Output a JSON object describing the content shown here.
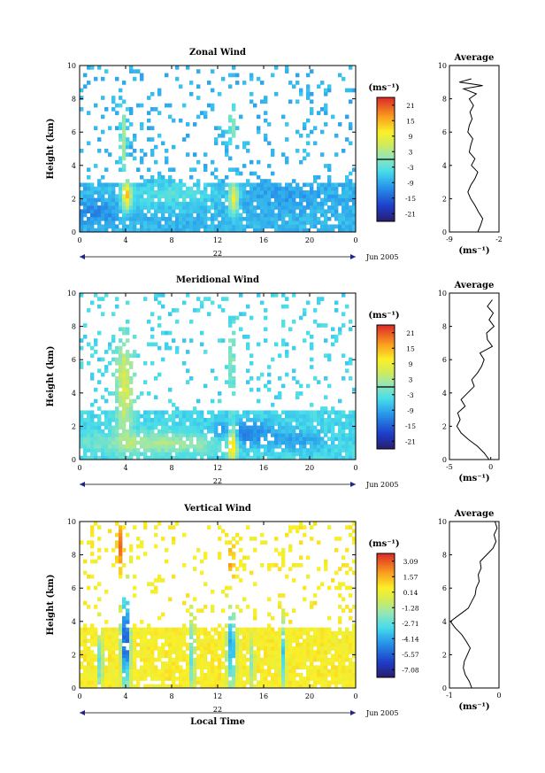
{
  "figure": {
    "xlabel": "Local Time",
    "date_label": "Jun 2005",
    "day_label": "22"
  },
  "chart_data": [
    {
      "type": "heatmap",
      "title": "Zonal Wind",
      "ylabel": "Height (km)",
      "unit_label": "(ms⁻¹)",
      "x_ticks": [
        "0",
        "4",
        "8",
        "12",
        "16",
        "20",
        "0"
      ],
      "y_ticks": [
        "0",
        "2",
        "4",
        "6",
        "8",
        "10"
      ],
      "xlim": [
        0,
        24
      ],
      "ylim": [
        0,
        10
      ],
      "colorbar": {
        "ticks": [
          "21",
          "15",
          "9",
          "3",
          "-3",
          "-9",
          "-15",
          "-21"
        ],
        "range": [
          -24,
          24
        ],
        "zero_line": 0
      },
      "profile": {
        "title": "Average",
        "xlabel": "(ms⁻¹)",
        "x_ticks": [
          "-9",
          "-2"
        ],
        "xlim": [
          -9,
          -2
        ],
        "y_ticks": [
          "0",
          "2",
          "4",
          "6",
          "8",
          "10"
        ],
        "height_km": [
          0.0,
          0.4,
          0.8,
          1.2,
          1.6,
          2.0,
          2.4,
          2.8,
          3.2,
          3.6,
          4.0,
          4.4,
          4.8,
          5.2,
          5.6,
          6.0,
          6.4,
          6.8,
          7.2,
          7.6,
          8.0,
          8.3,
          8.6,
          8.8,
          9.0,
          9.2
        ],
        "value": [
          -5.0,
          -4.6,
          -4.3,
          -4.9,
          -5.4,
          -6.0,
          -6.4,
          -6.0,
          -5.4,
          -5.0,
          -5.9,
          -5.4,
          -6.2,
          -6.0,
          -5.7,
          -6.4,
          -6.2,
          -5.8,
          -6.1,
          -5.6,
          -6.2,
          -5.2,
          -7.0,
          -4.3,
          -7.6,
          -5.9
        ]
      },
      "field": {
        "base": -8,
        "patches": [
          [
            4.1,
            2.2,
            0.4,
            0.9,
            14
          ],
          [
            3.8,
            5.5,
            0.3,
            2.0,
            4
          ],
          [
            13.4,
            2.0,
            0.4,
            1.0,
            10
          ],
          [
            13.3,
            6.5,
            0.3,
            1.5,
            2
          ],
          [
            8,
            2.3,
            4,
            0.8,
            -3
          ],
          [
            1.5,
            1.2,
            2,
            0.7,
            -12
          ],
          [
            18,
            2.2,
            4,
            0.8,
            -10
          ]
        ]
      }
    },
    {
      "type": "heatmap",
      "title": "Meridional Wind",
      "ylabel": "Height (km)",
      "unit_label": "(ms⁻¹)",
      "x_ticks": [
        "0",
        "4",
        "8",
        "12",
        "16",
        "20",
        "0"
      ],
      "y_ticks": [
        "0",
        "2",
        "4",
        "6",
        "8",
        "10"
      ],
      "xlim": [
        0,
        24
      ],
      "ylim": [
        0,
        10
      ],
      "colorbar": {
        "ticks": [
          "21",
          "15",
          "9",
          "3",
          "-3",
          "-9",
          "-15",
          "-21"
        ],
        "range": [
          -24,
          24
        ],
        "zero_line": 0
      },
      "profile": {
        "title": "Average",
        "xlabel": "(ms⁻¹)",
        "x_ticks": [
          "-5",
          "0"
        ],
        "xlim": [
          -5,
          1
        ],
        "y_ticks": [
          "0",
          "2",
          "4",
          "6",
          "8",
          "10"
        ],
        "height_km": [
          0.0,
          0.4,
          0.8,
          1.2,
          1.6,
          2.0,
          2.4,
          2.8,
          3.2,
          3.6,
          4.0,
          4.4,
          4.8,
          5.2,
          5.6,
          6.0,
          6.4,
          6.8,
          7.2,
          7.6,
          8.0,
          8.4,
          8.8,
          9.2,
          9.6
        ],
        "value": [
          -0.2,
          -0.8,
          -1.6,
          -2.7,
          -3.6,
          -4.1,
          -3.7,
          -4.0,
          -3.1,
          -3.6,
          -2.8,
          -2.0,
          -2.3,
          -1.6,
          -1.1,
          -0.8,
          -1.3,
          0.2,
          -0.4,
          -0.5,
          0.4,
          -0.2,
          0.3,
          -0.4,
          0.2
        ]
      },
      "field": {
        "base": -5,
        "patches": [
          [
            3.9,
            4.5,
            0.8,
            3.0,
            8
          ],
          [
            13.3,
            1.0,
            0.4,
            1.2,
            16
          ],
          [
            13.2,
            6.0,
            0.3,
            2.0,
            2
          ],
          [
            14.0,
            1.6,
            2.5,
            0.8,
            -14
          ],
          [
            18.5,
            1.2,
            3,
            0.6,
            -10
          ],
          [
            7,
            1.0,
            6,
            0.6,
            4
          ]
        ]
      }
    },
    {
      "type": "heatmap",
      "title": "Vertical Wind",
      "ylabel": "Height (km)",
      "unit_label": "(ms⁻¹)",
      "x_ticks": [
        "0",
        "4",
        "8",
        "12",
        "16",
        "20",
        "0"
      ],
      "y_ticks": [
        "0",
        "2",
        "4",
        "6",
        "8",
        "10"
      ],
      "xlim": [
        0,
        24
      ],
      "ylim": [
        0,
        10
      ],
      "colorbar": {
        "ticks": [
          "3.09",
          "1.57",
          "0.14",
          "-1.28",
          "-2.71",
          "-4.14",
          "-5.57",
          "-7.08"
        ],
        "range": [
          -7.8,
          3.8
        ]
      },
      "profile": {
        "title": "Average",
        "xlabel": "(ms⁻¹)",
        "x_ticks": [
          "-1",
          "0"
        ],
        "xlim": [
          -1,
          0
        ],
        "y_ticks": [
          "0",
          "2",
          "4",
          "6",
          "8",
          "10"
        ],
        "height_km": [
          0.0,
          0.4,
          0.8,
          1.2,
          1.6,
          2.0,
          2.4,
          2.8,
          3.2,
          3.6,
          4.0,
          4.4,
          4.8,
          5.2,
          5.6,
          6.0,
          6.4,
          6.8,
          7.2,
          7.6,
          8.0,
          8.4,
          8.8,
          9.2,
          9.6,
          10.0
        ],
        "value": [
          -0.55,
          -0.6,
          -0.68,
          -0.72,
          -0.7,
          -0.64,
          -0.58,
          -0.66,
          -0.75,
          -0.88,
          -0.98,
          -0.8,
          -0.62,
          -0.55,
          -0.48,
          -0.46,
          -0.4,
          -0.42,
          -0.36,
          -0.38,
          -0.25,
          -0.12,
          -0.06,
          -0.1,
          -0.04,
          -0.08
        ]
      },
      "field": {
        "base": 0.5,
        "patches": [
          [
            4.0,
            3.0,
            0.4,
            3.0,
            -7
          ],
          [
            3.5,
            8.5,
            0.3,
            1.5,
            3
          ],
          [
            1.8,
            1.5,
            0.2,
            2.0,
            -4
          ],
          [
            9.8,
            2.0,
            0.2,
            2.5,
            -4
          ],
          [
            13.2,
            2.5,
            0.4,
            2.5,
            -5
          ],
          [
            13.2,
            7.5,
            0.2,
            1.2,
            2.5
          ],
          [
            17.7,
            2.0,
            0.2,
            2.0,
            -4
          ],
          [
            15.0,
            1.5,
            0.2,
            1.5,
            -2.5
          ]
        ]
      }
    }
  ]
}
